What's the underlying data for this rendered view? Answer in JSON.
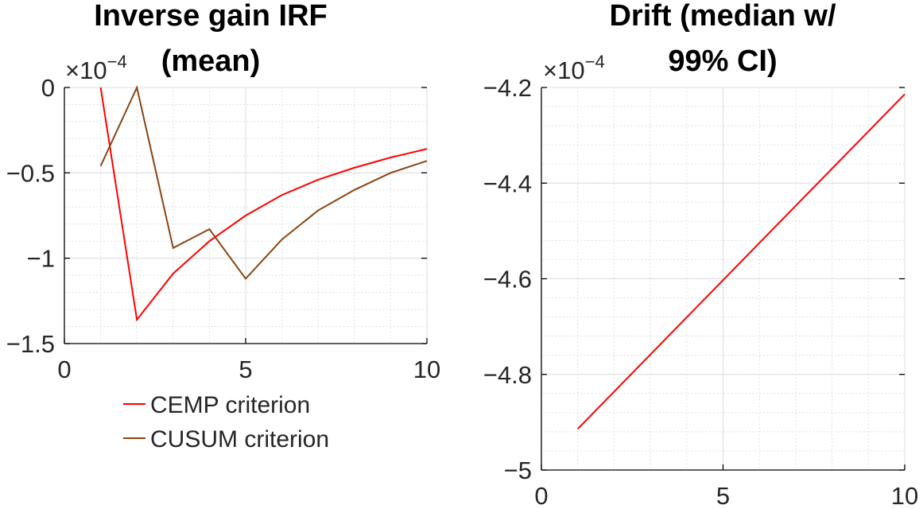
{
  "chart_data": [
    {
      "type": "line",
      "title": [
        "Inverse gain IRF",
        "(mean)"
      ],
      "xlabel": "",
      "ylabel": "",
      "exponent": "-4",
      "xlim": [
        0,
        10
      ],
      "ylim": [
        -1.5,
        0
      ],
      "xticks": [
        0,
        5,
        10
      ],
      "xtick_labels": [
        "0",
        "5",
        "10"
      ],
      "yticks": [
        0,
        -0.5,
        -1,
        -1.5
      ],
      "ytick_labels": [
        "0",
        "-0.5",
        "-1",
        "-1.5"
      ],
      "grid": true,
      "minor_grid": true,
      "legend_placement": "below",
      "series": [
        {
          "name": "CEMP criterion",
          "color": "#ff0000",
          "x": [
            1,
            2,
            3,
            4,
            5,
            6,
            7,
            8,
            9,
            10
          ],
          "y": [
            0.0,
            -1.36,
            -1.09,
            -0.9,
            -0.75,
            -0.63,
            -0.54,
            -0.47,
            -0.41,
            -0.36
          ]
        },
        {
          "name": "CUSUM criterion",
          "color": "#8b4513",
          "x": [
            1,
            2,
            3,
            4,
            5,
            6,
            7,
            8,
            9,
            10
          ],
          "y": [
            -0.46,
            0.0,
            -0.94,
            -0.83,
            -1.12,
            -0.89,
            -0.72,
            -0.6,
            -0.5,
            -0.43
          ]
        }
      ]
    },
    {
      "type": "line",
      "title": [
        "Drift (median w/",
        "99% CI)"
      ],
      "xlabel": "",
      "ylabel": "",
      "exponent": "-4",
      "xlim": [
        0,
        10
      ],
      "ylim": [
        -5,
        -4.2
      ],
      "xticks": [
        0,
        5,
        10
      ],
      "xtick_labels": [
        "0",
        "5",
        "10"
      ],
      "yticks": [
        -4.2,
        -4.4,
        -4.6,
        -4.8,
        -5
      ],
      "ytick_labels": [
        "-4.2",
        "-4.4",
        "-4.6",
        "-4.8",
        "-5"
      ],
      "grid": true,
      "minor_grid": true,
      "series": [
        {
          "color": "#ff0000",
          "x": [
            1,
            10
          ],
          "y": [
            -4.914,
            -4.214
          ]
        }
      ]
    }
  ]
}
